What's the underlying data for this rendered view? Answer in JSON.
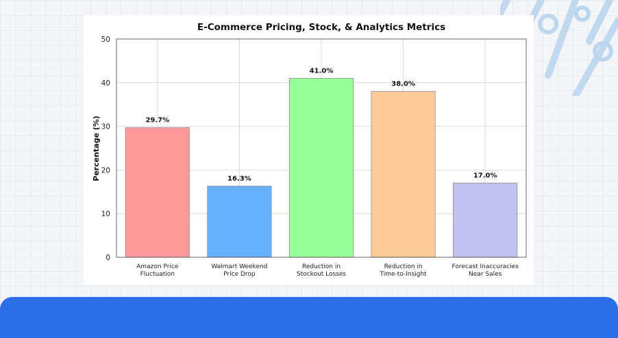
{
  "chart_data": {
    "type": "bar",
    "title": "E-Commerce Pricing, Stock, & Analytics Metrics",
    "ylabel": "Percentage (%)",
    "xlabel": "",
    "ylim": [
      0,
      50
    ],
    "yticks": [
      0,
      10,
      20,
      30,
      40,
      50
    ],
    "grid": true,
    "categories": [
      [
        "Amazon Price",
        "Fluctuation"
      ],
      [
        "Walmart Weekend",
        "Price Drop"
      ],
      [
        "Reduction in",
        "Stockout Losses"
      ],
      [
        "Reduction in",
        "Time-to-Insight"
      ],
      [
        "Forecast Inaccuracies",
        "Near Sales"
      ]
    ],
    "values": [
      29.7,
      16.3,
      41.0,
      38.0,
      17.0
    ],
    "value_labels": [
      "29.7%",
      "16.3%",
      "41.0%",
      "38.0%",
      "17.0%"
    ],
    "colors": [
      "#ff9a9a",
      "#66b2ff",
      "#99ff99",
      "#ffcc99",
      "#c2c2f0"
    ]
  }
}
